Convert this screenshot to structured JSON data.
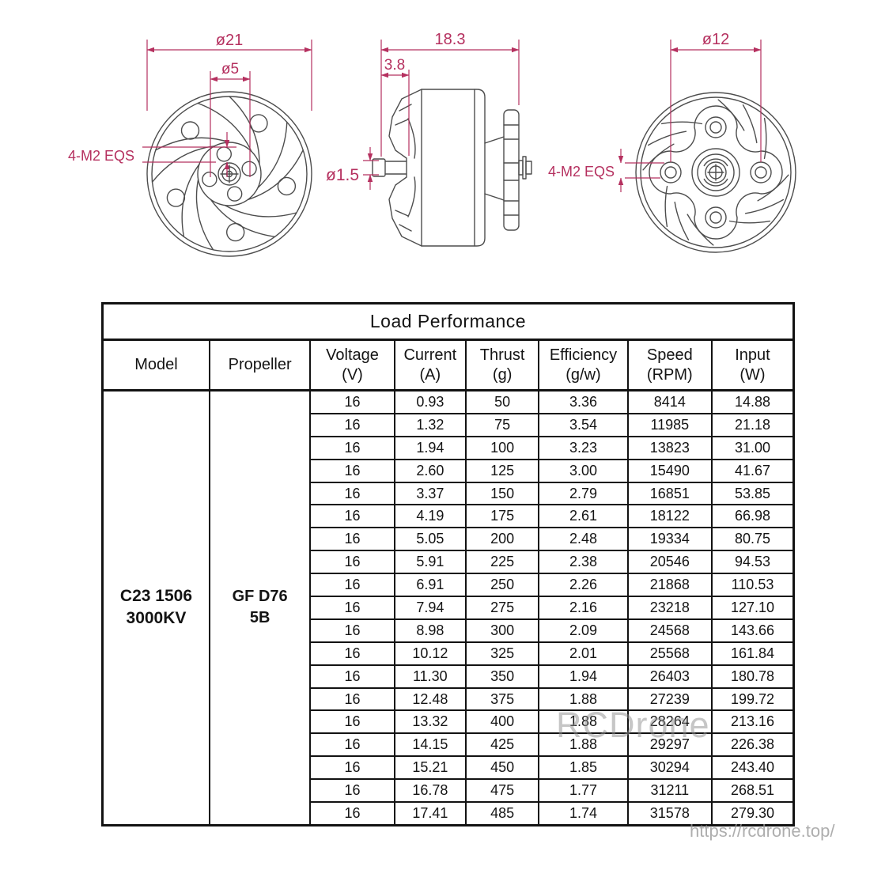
{
  "drawings": {
    "front_view": {
      "outer_diameter": "ø21",
      "hub_diameter": "ø5",
      "mount_holes": "4-M2 EQS"
    },
    "side_view": {
      "total_length": "18.3",
      "cap_width": "3.8",
      "shaft_diameter": "ø1.5"
    },
    "back_view": {
      "bolt_circle_diameter": "ø12",
      "mount_holes": "4-M2 EQS"
    }
  },
  "table": {
    "title": "Load Performance",
    "columns": [
      {
        "label": "Model",
        "unit": ""
      },
      {
        "label": "Propeller",
        "unit": ""
      },
      {
        "label": "Voltage",
        "unit": "(V)"
      },
      {
        "label": "Current",
        "unit": "(A)"
      },
      {
        "label": "Thrust",
        "unit": "(g)"
      },
      {
        "label": "Efficiency",
        "unit": "(g/w)"
      },
      {
        "label": "Speed",
        "unit": "(RPM)"
      },
      {
        "label": "Input",
        "unit": "(W)"
      }
    ],
    "model": {
      "line1": "C23 1506",
      "line2": "3000KV"
    },
    "propeller": {
      "line1": "GF D76",
      "line2": "5B"
    },
    "rows": [
      {
        "voltage": "16",
        "current": "0.93",
        "thrust": "50",
        "efficiency": "3.36",
        "speed": "8414",
        "input": "14.88"
      },
      {
        "voltage": "16",
        "current": "1.32",
        "thrust": "75",
        "efficiency": "3.54",
        "speed": "11985",
        "input": "21.18"
      },
      {
        "voltage": "16",
        "current": "1.94",
        "thrust": "100",
        "efficiency": "3.23",
        "speed": "13823",
        "input": "31.00"
      },
      {
        "voltage": "16",
        "current": "2.60",
        "thrust": "125",
        "efficiency": "3.00",
        "speed": "15490",
        "input": "41.67"
      },
      {
        "voltage": "16",
        "current": "3.37",
        "thrust": "150",
        "efficiency": "2.79",
        "speed": "16851",
        "input": "53.85"
      },
      {
        "voltage": "16",
        "current": "4.19",
        "thrust": "175",
        "efficiency": "2.61",
        "speed": "18122",
        "input": "66.98"
      },
      {
        "voltage": "16",
        "current": "5.05",
        "thrust": "200",
        "efficiency": "2.48",
        "speed": "19334",
        "input": "80.75"
      },
      {
        "voltage": "16",
        "current": "5.91",
        "thrust": "225",
        "efficiency": "2.38",
        "speed": "20546",
        "input": "94.53"
      },
      {
        "voltage": "16",
        "current": "6.91",
        "thrust": "250",
        "efficiency": "2.26",
        "speed": "21868",
        "input": "110.53"
      },
      {
        "voltage": "16",
        "current": "7.94",
        "thrust": "275",
        "efficiency": "2.16",
        "speed": "23218",
        "input": "127.10"
      },
      {
        "voltage": "16",
        "current": "8.98",
        "thrust": "300",
        "efficiency": "2.09",
        "speed": "24568",
        "input": "143.66"
      },
      {
        "voltage": "16",
        "current": "10.12",
        "thrust": "325",
        "efficiency": "2.01",
        "speed": "25568",
        "input": "161.84"
      },
      {
        "voltage": "16",
        "current": "11.30",
        "thrust": "350",
        "efficiency": "1.94",
        "speed": "26403",
        "input": "180.78"
      },
      {
        "voltage": "16",
        "current": "12.48",
        "thrust": "375",
        "efficiency": "1.88",
        "speed": "27239",
        "input": "199.72"
      },
      {
        "voltage": "16",
        "current": "13.32",
        "thrust": "400",
        "efficiency": "1.88",
        "speed": "28264",
        "input": "213.16"
      },
      {
        "voltage": "16",
        "current": "14.15",
        "thrust": "425",
        "efficiency": "1.88",
        "speed": "29297",
        "input": "226.38"
      },
      {
        "voltage": "16",
        "current": "15.21",
        "thrust": "450",
        "efficiency": "1.85",
        "speed": "30294",
        "input": "243.40"
      },
      {
        "voltage": "16",
        "current": "16.78",
        "thrust": "475",
        "efficiency": "1.77",
        "speed": "31211",
        "input": "268.51"
      },
      {
        "voltage": "16",
        "current": "17.41",
        "thrust": "485",
        "efficiency": "1.74",
        "speed": "31578",
        "input": "279.30"
      }
    ]
  },
  "watermarks": {
    "center": "RCDrone",
    "bottom_right": "https://rcdrone.top/"
  },
  "colors": {
    "dimension": "#b5305f",
    "linework": "#4d4d4d",
    "table_border": "#121212",
    "watermark": "#9a9a9a"
  }
}
